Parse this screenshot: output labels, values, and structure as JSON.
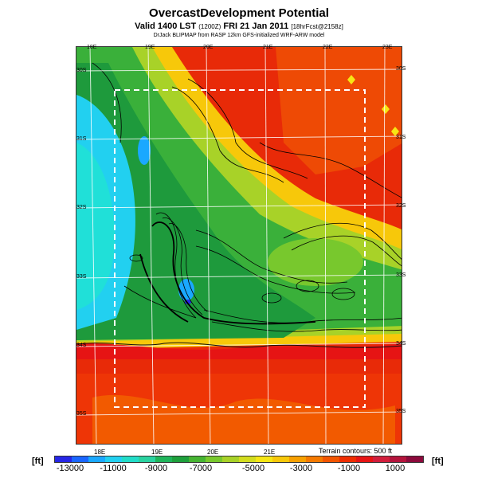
{
  "header": {
    "title": "OvercastDevelopment Potential",
    "subtitle_main": "Valid 1400 LST",
    "subtitle_code": "(1200Z)",
    "subtitle_date": "FRI 21 Jan 2011",
    "subtitle_forecast": "[18hrFcst@2158z]",
    "credit": "DrJack BLIPMAP from RASP 12km GFS-initialized WRF-ARW model"
  },
  "axes": {
    "lon_top": [
      "18E",
      "19E",
      "20E",
      "21E",
      "22E",
      "23E"
    ],
    "lon_bottom": [
      "18E",
      "19E",
      "20E",
      "21E"
    ],
    "lat_left": [
      "30S",
      "31S",
      "32S",
      "33S",
      "34S",
      "35S"
    ],
    "lat_right": [
      "30S",
      "31S",
      "32S",
      "33S",
      "34S",
      "35S"
    ]
  },
  "legend": {
    "unit_left": "[ft]",
    "unit_right": "[ft]",
    "terrain_note": "Terrain contours: 500 ft",
    "tick_labels": [
      "-13000",
      "-11000",
      "-9000",
      "-7000",
      "-5000",
      "-3000",
      "-1000",
      "1000"
    ],
    "colors": [
      "#2626e6",
      "#1a66ff",
      "#1aa8ff",
      "#22d0f0",
      "#22dcc8",
      "#2ad2a0",
      "#1fb45a",
      "#1ea03c",
      "#46b432",
      "#78c82d",
      "#a8d228",
      "#d2dc1e",
      "#f5e614",
      "#f7c80a",
      "#f7a000",
      "#f57a00",
      "#f25500",
      "#ee2d00",
      "#e61414",
      "#d21e3c",
      "#b4143c",
      "#8c0a3c"
    ]
  },
  "map": {
    "background": "#e82a08"
  }
}
